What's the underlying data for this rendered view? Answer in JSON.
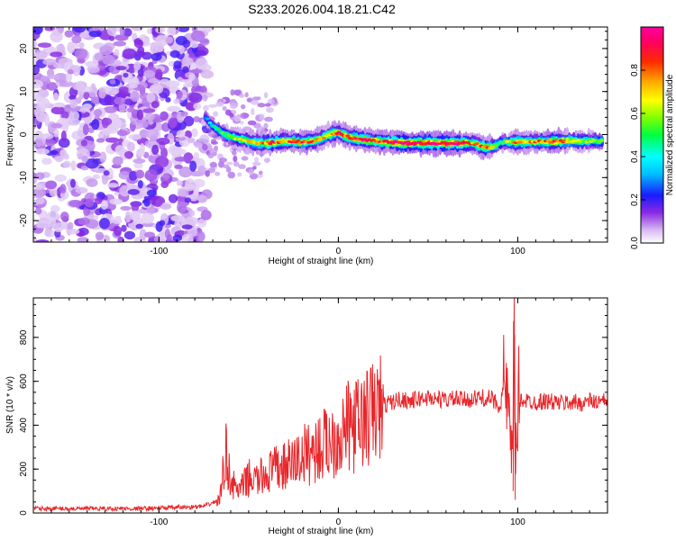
{
  "figure": {
    "title": "S233.2026.004.18.21.C42"
  },
  "chart_data": [
    {
      "type": "heatmap",
      "title": "",
      "xlabel": "Height of straight line (km)",
      "ylabel": "Frequency (Hz)",
      "xlim": [
        -170,
        150
      ],
      "ylim": [
        -25,
        25
      ],
      "xticks": [
        -100,
        0,
        100
      ],
      "yticks": [
        -20,
        -10,
        0,
        10,
        20
      ],
      "colorbar": {
        "label": "Normalized spectral amplitude",
        "range": [
          0,
          1
        ],
        "ticks": [
          0.0,
          0.2,
          0.4,
          0.6,
          0.8
        ]
      },
      "ridge": {
        "x": [
          -74,
          -70,
          -65,
          -60,
          -55,
          -50,
          -45,
          -40,
          -35,
          -30,
          -25,
          -20,
          -15,
          -10,
          -5,
          0,
          5,
          10,
          15,
          20,
          30,
          40,
          50,
          60,
          70,
          75,
          80,
          85,
          88,
          90,
          95,
          100,
          110,
          120,
          130,
          140,
          148
        ],
        "y": [
          4,
          2,
          0.5,
          -0.5,
          -1,
          -1.5,
          -2,
          -2,
          -1.8,
          -1.5,
          -1.5,
          -1.8,
          -1.5,
          -1,
          0,
          0.5,
          -0.5,
          -1,
          -1.3,
          -1.5,
          -1.8,
          -2,
          -2,
          -2,
          -2,
          -2,
          -2.8,
          -3,
          -2.5,
          -1.8,
          -1.8,
          -1.7,
          -1.7,
          -1.6,
          -1.5,
          -1.5,
          -1.5
        ],
        "amplitude": [
          0.3,
          0.4,
          0.5,
          0.6,
          0.65,
          0.7,
          0.75,
          0.8,
          0.85,
          0.8,
          0.8,
          0.85,
          0.8,
          0.7,
          0.7,
          0.9,
          0.75,
          0.9,
          0.9,
          0.8,
          0.95,
          1.0,
          1.0,
          0.98,
          0.95,
          0.7,
          0.9,
          0.7,
          0.6,
          0.5,
          0.65,
          0.8,
          0.75,
          0.9,
          0.7,
          0.6,
          0.55
        ]
      }
    },
    {
      "type": "line",
      "title": "",
      "xlabel": "Height of straight line (km)",
      "ylabel": "SNR (10 * v/v)",
      "xlim": [
        -170,
        150
      ],
      "ylim": [
        0,
        980
      ],
      "xticks": [
        -100,
        0,
        100
      ],
      "yticks": [
        0,
        200,
        400,
        600,
        800
      ],
      "color": "#e8262a",
      "series": [
        {
          "name": "SNR",
          "x": [
            -170,
            -150,
            -130,
            -110,
            -90,
            -75,
            -66,
            -63,
            -60,
            -58,
            -55,
            -50,
            -45,
            -40,
            -35,
            -30,
            -25,
            -20,
            -15,
            -10,
            -5,
            0,
            5,
            10,
            15,
            20,
            25,
            30,
            35,
            40,
            45,
            50,
            55,
            60,
            65,
            70,
            75,
            80,
            85,
            90,
            93,
            95,
            97,
            98,
            99,
            100,
            102,
            105,
            110,
            115,
            120,
            125,
            130,
            135,
            140,
            145,
            150
          ],
          "y": [
            20,
            20,
            20,
            20,
            25,
            30,
            60,
            280,
            150,
            120,
            100,
            160,
            150,
            180,
            200,
            210,
            230,
            260,
            280,
            300,
            330,
            350,
            390,
            400,
            430,
            460,
            490,
            505,
            520,
            510,
            520,
            525,
            520,
            515,
            520,
            515,
            520,
            525,
            520,
            490,
            600,
            400,
            100,
            980,
            160,
            500,
            520,
            510,
            505,
            510,
            505,
            500,
            505,
            500,
            510,
            505,
            510
          ]
        }
      ]
    }
  ]
}
